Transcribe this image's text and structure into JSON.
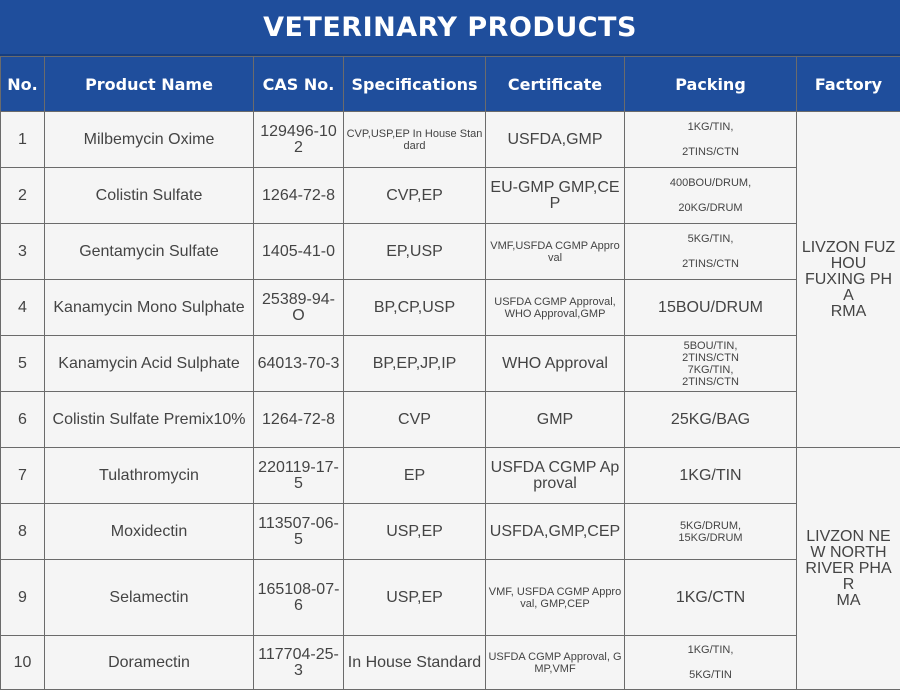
{
  "title": "VETERINARY  PRODUCTS",
  "headers": [
    "No.",
    "Product Name",
    "CAS No.",
    "Specifications",
    "Certificate",
    "Packing",
    "Factory"
  ],
  "rows": [
    {
      "no": "1",
      "name": "Milbemycin Oxime",
      "cas": "129496-10-2",
      "spec": "CVP,USP,EP In House Standard",
      "cert": "USFDA,GMP",
      "packing": [
        "1KG/TIN,",
        "2TINS/CTN"
      ]
    },
    {
      "no": "2",
      "name": "Colistin Sulfate",
      "cas": "1264-72-8",
      "spec": "CVP,EP",
      "cert": "EU-GMP GMP,CEP",
      "packing": [
        "400BOU/DRUM,",
        "20KG/DRUM"
      ]
    },
    {
      "no": "3",
      "name": "Gentamycin Sulfate",
      "cas": "1405-41-0",
      "spec": "EP,USP",
      "cert": "VMF,USFDA CGMP Approval",
      "packing": [
        "5KG/TIN,",
        "2TINS/CTN"
      ]
    },
    {
      "no": "4",
      "name": "Kanamycin Mono Sulphate",
      "cas": "25389-94-0",
      "spec": "BP,CP,USP",
      "cert": "USFDA CGMP Approval, WHO Approval,GMP",
      "packing": [
        "15BOU/DRUM"
      ]
    },
    {
      "no": "5",
      "name": "Kanamycin Acid Sulphate",
      "cas": "64013-70-3",
      "spec": "BP,EP,JP,IP",
      "cert": "WHO Approval",
      "packing": [
        "5BOU/TIN,",
        "2TINS/CTN",
        "7KG/TIN,",
        "2TINS/CTN"
      ]
    },
    {
      "no": "6",
      "name": "Colistin Sulfate Premix10%",
      "cas": "1264-72-8",
      "spec": "CVP",
      "cert": "GMP",
      "packing": [
        "25KG/BAG"
      ]
    },
    {
      "no": "7",
      "name": "Tulathromycin",
      "cas": "220119-17-5",
      "spec": "EP",
      "cert": "USFDA CGMP Approval",
      "packing": [
        "1KG/TIN"
      ]
    },
    {
      "no": "8",
      "name": "Moxidectin",
      "cas": "113507-06-5",
      "spec": "USP,EP",
      "cert": "USFDA,GMP,CEP",
      "packing": [
        "5KG/DRUM,",
        "15KG/DRUM"
      ]
    },
    {
      "no": "9",
      "name": "Selamectin",
      "cas": "165108-07-6",
      "spec": "USP,EP",
      "cert": "VMF, USFDA CGMP Approval, GMP,CEP",
      "packing": [
        "1KG/CTN"
      ]
    },
    {
      "no": "10",
      "name": "Doramectin",
      "cas": "117704-25-3",
      "spec": "In House Standard",
      "cert": "USFDA CGMP Approval, GMP,VMF",
      "packing": [
        "1KG/TIN,",
        "5KG/TIN"
      ]
    }
  ],
  "cas_display": [
    "129496-10\n2",
    "1264-72-8",
    "1405-41-0",
    "25389-94-\nO",
    "64013-70-3",
    "1264-72-8",
    "220119-17-\n5",
    "113507-06-\n5",
    "165108-07-\n6",
    "117704-25-\n3"
  ],
  "factories": [
    {
      "name": "LIVZON FUZHOU FUXING PHARMA",
      "display": "LIVZON FUZ\nHOU\nFUXING PHA\nRMA"
    },
    {
      "name": "LIVZON NEW NORTH RIVER PHARMA",
      "display": "LIVZON NE\nW NORTH\nRIVER PHAR\nMA"
    }
  ],
  "colors": {
    "header_blue": "#1f4e9c",
    "cell_bg": "#f5f5f5",
    "border": "#6b6b6b",
    "text": "#444444"
  }
}
